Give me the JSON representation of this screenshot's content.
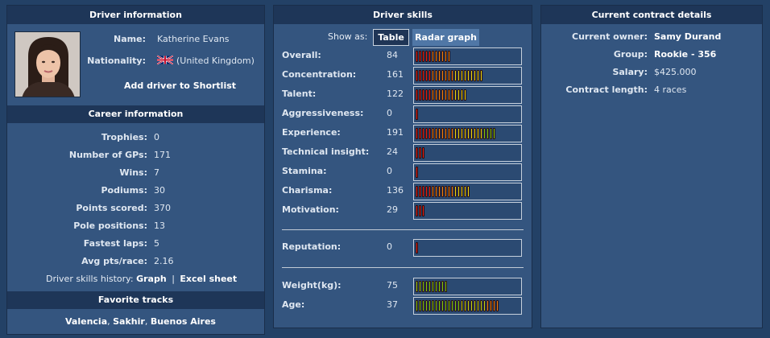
{
  "driver_info": {
    "header": "Driver information",
    "name_label": "Name:",
    "name_value": "Katherine Evans",
    "nationality_label": "Nationality:",
    "nationality_value": "(United Kingdom)",
    "flag_icon": "uk-flag-icon",
    "shortlist_link": "Add driver to Shortlist"
  },
  "career": {
    "header": "Career information",
    "rows": [
      {
        "label": "Trophies:",
        "value": "0"
      },
      {
        "label": "Number of GPs:",
        "value": "171"
      },
      {
        "label": "Wins:",
        "value": "7"
      },
      {
        "label": "Podiums:",
        "value": "30"
      },
      {
        "label": "Points scored:",
        "value": "370"
      },
      {
        "label": "Pole positions:",
        "value": "13"
      },
      {
        "label": "Fastest laps:",
        "value": "5"
      },
      {
        "label": "Avg pts/race:",
        "value": "2.16"
      }
    ],
    "history_label": "Driver skills history:",
    "history_graph": "Graph",
    "history_sep": "|",
    "history_excel": "Excel sheet"
  },
  "tracks": {
    "header": "Favorite tracks",
    "track1": "Valencia",
    "sep1": ", ",
    "track2": "Sakhir",
    "sep2": ", ",
    "track3": "Buenos Aires"
  },
  "skills": {
    "header": "Driver skills",
    "show_as_label": "Show as:",
    "table_button": "Table",
    "radar_button": "Radar graph",
    "rows": [
      {
        "label": "Overall:",
        "value": "84",
        "segments": 11,
        "style": "skill"
      },
      {
        "label": "Concentration:",
        "value": "161",
        "segments": 21,
        "style": "skill"
      },
      {
        "label": "Talent:",
        "value": "122",
        "segments": 16,
        "style": "skill"
      },
      {
        "label": "Aggressiveness:",
        "value": "0",
        "segments": 1,
        "style": "skill"
      },
      {
        "label": "Experience:",
        "value": "191",
        "segments": 25,
        "style": "skill"
      },
      {
        "label": "Technical insight:",
        "value": "24",
        "segments": 3,
        "style": "skill"
      },
      {
        "label": "Stamina:",
        "value": "0",
        "segments": 1,
        "style": "skill"
      },
      {
        "label": "Charisma:",
        "value": "136",
        "segments": 17,
        "style": "skill"
      },
      {
        "label": "Motivation:",
        "value": "29",
        "segments": 3,
        "style": "skill"
      }
    ],
    "reputation": {
      "label": "Reputation:",
      "value": "0",
      "segments": 1,
      "style": "skill"
    },
    "physical": [
      {
        "label": "Weight(kg):",
        "value": "75",
        "segments": 10,
        "style": "weight"
      },
      {
        "label": "Age:",
        "value": "37",
        "segments": 26,
        "style": "age"
      }
    ]
  },
  "contract": {
    "header": "Current contract details",
    "rows": [
      {
        "label": "Current owner:",
        "value": "Samy Durand",
        "bold": true
      },
      {
        "label": "Group:",
        "value": "Rookie - 356",
        "bold": true
      },
      {
        "label": "Salary:",
        "value": "$425.000",
        "bold": false
      },
      {
        "label": "Contract length:",
        "value": "4 races",
        "bold": false
      }
    ]
  },
  "colors": {
    "background": "#234166",
    "panel": "#34557f",
    "header": "#1e3658",
    "bar_red": "#e8231b",
    "bar_orange": "#f08a1c",
    "bar_yellow": "#e9e11e",
    "bar_green": "#7fd21a"
  }
}
